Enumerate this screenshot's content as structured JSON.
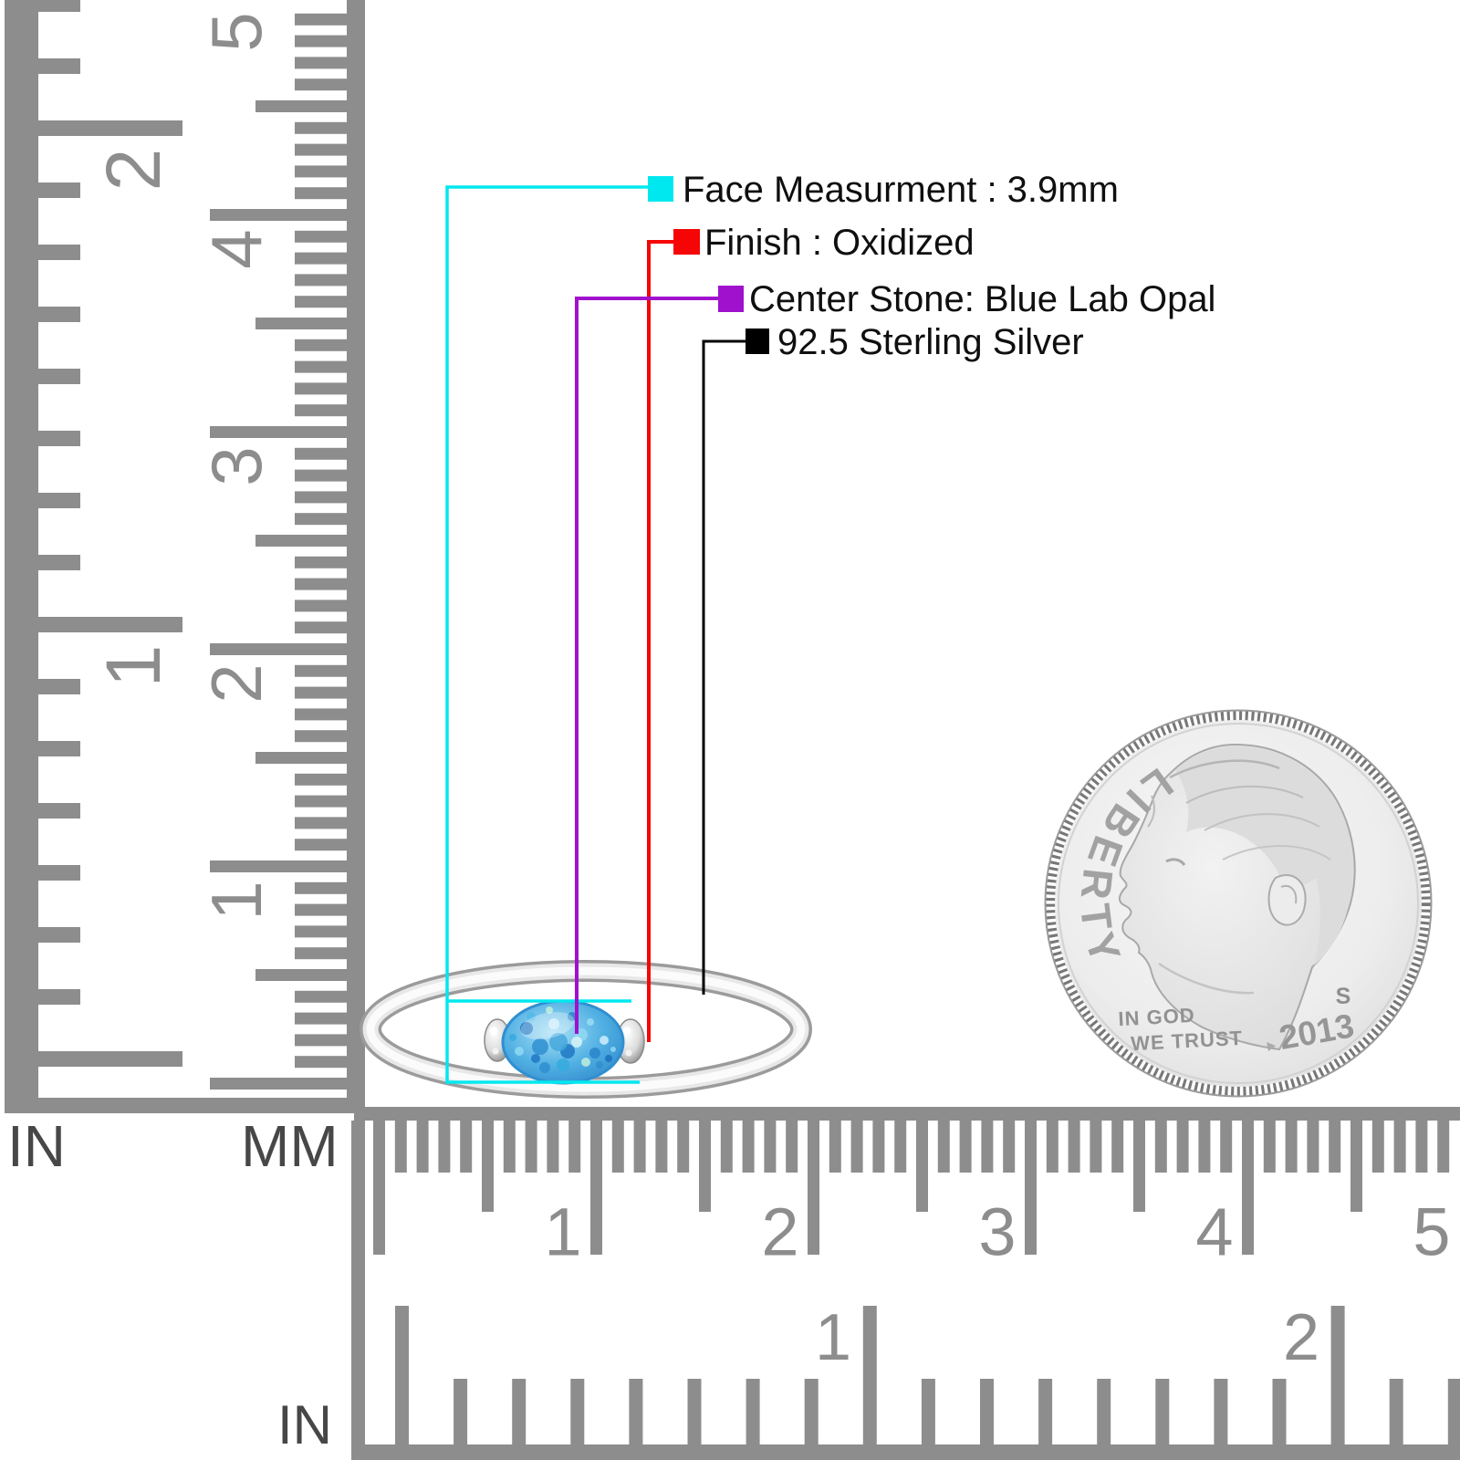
{
  "figure": {
    "description": "Silver ring with oval blue lab opal shown with rulers and a dime for scale",
    "background_color": "#ffffff"
  },
  "callouts": [
    {
      "id": "face-measurement",
      "color": "#00e8ef",
      "text": "Face Measurment : 3.9mm"
    },
    {
      "id": "finish",
      "color": "#f50505",
      "text": "Finish : Oxidized"
    },
    {
      "id": "center-stone",
      "color": "#a011cd",
      "text": "Center Stone: Blue Lab Opal"
    },
    {
      "id": "material",
      "color": "#000000",
      "text": "92.5 Sterling Silver"
    }
  ],
  "rulers": {
    "vertical_inch": {
      "unit_label": "IN",
      "numbers": [
        "1",
        "2"
      ]
    },
    "vertical_mm": {
      "unit_label": "MM",
      "numbers": [
        "1",
        "2",
        "3",
        "4",
        "5"
      ]
    },
    "horizontal_mm": {
      "numbers": [
        "1",
        "2",
        "3",
        "4",
        "5"
      ]
    },
    "horizontal_inch": {
      "unit_label": "IN",
      "numbers": [
        "1",
        "2"
      ]
    }
  },
  "coin": {
    "top_text": "LIBERTY",
    "motto_line1": "IN GOD",
    "motto_line2": "WE TRUST",
    "mint_mark": "S",
    "year": "2013"
  },
  "ring": {
    "stone_color": "#51b0e3",
    "band_color": "#e9e9e9"
  }
}
